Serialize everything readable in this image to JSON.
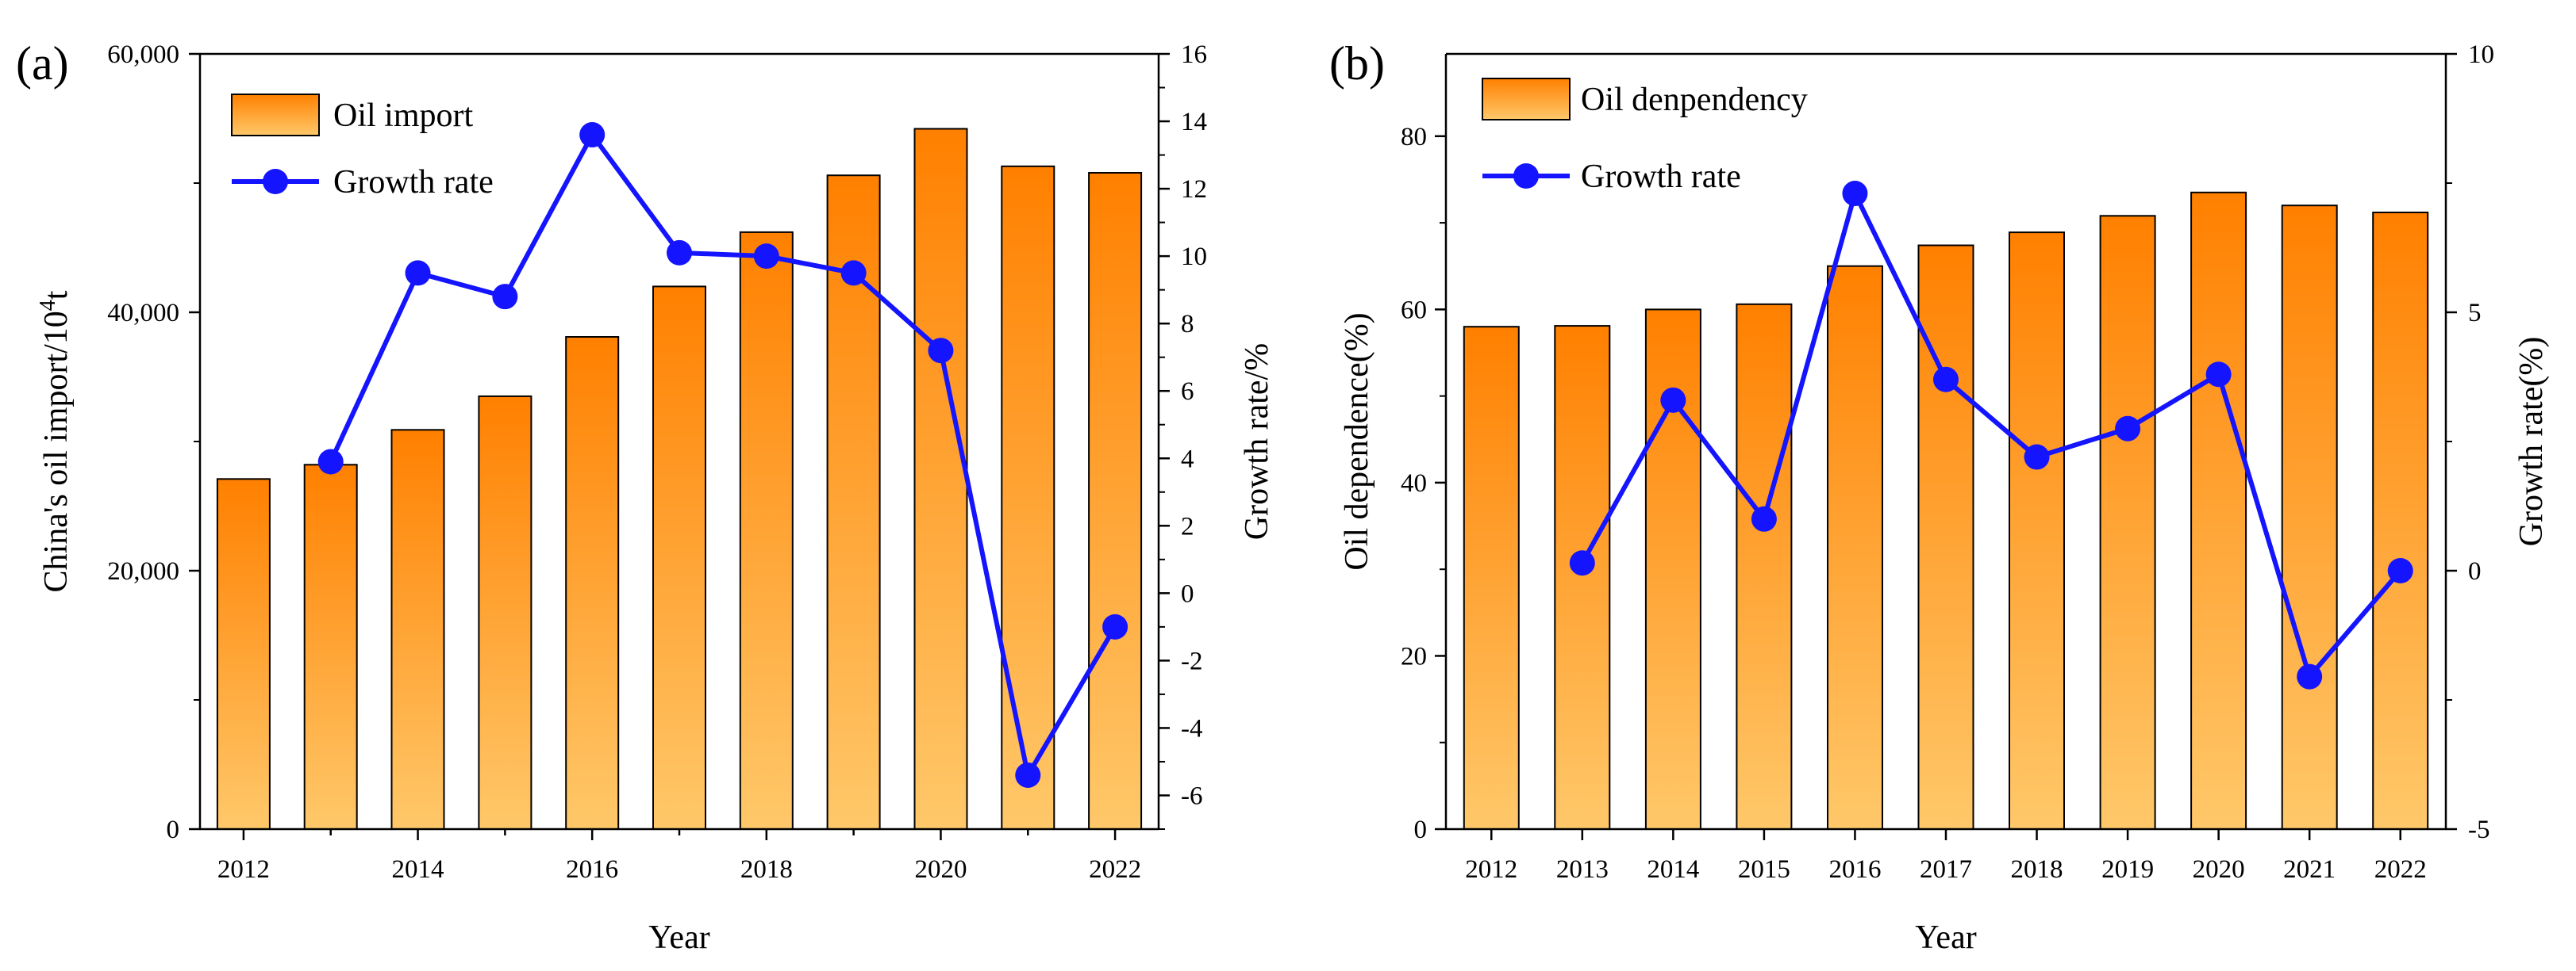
{
  "colors": {
    "bar_top": "#ff8000",
    "bar_bottom": "#ffc86a",
    "line": "#1414ff",
    "axis": "#000000"
  },
  "chart_data": [
    {
      "type": "bar",
      "panel_label": "(a)",
      "categories": [
        "2012",
        "2013",
        "2014",
        "2015",
        "2016",
        "2017",
        "2018",
        "2019",
        "2020",
        "2021",
        "2022"
      ],
      "series": [
        {
          "name": "Oil import",
          "type": "bar",
          "axis": "left",
          "values": [
            27100,
            28200,
            30900,
            33500,
            38100,
            42000,
            46200,
            50600,
            54200,
            51300,
            50800
          ]
        },
        {
          "name": "Growth rate",
          "type": "line",
          "axis": "right",
          "values": [
            null,
            3.9,
            9.5,
            8.8,
            13.6,
            10.1,
            10.0,
            9.5,
            7.2,
            -5.4,
            -1.0
          ]
        }
      ],
      "xlabel": "Year",
      "ylabel_left_prefix": "China's oil import/10",
      "ylabel_left_sup": "4",
      "ylabel_left_suffix": "t",
      "ylabel_right": "Growth rate/%",
      "ylim_left": [
        0,
        60000
      ],
      "ylim_right": [
        -7,
        16
      ],
      "yticks_left": [
        0,
        20000,
        40000,
        60000
      ],
      "yticks_left_labels": [
        "0",
        "20,000",
        "40,000",
        "60,000"
      ],
      "yticks_right": [
        -6,
        -4,
        -2,
        0,
        2,
        4,
        6,
        8,
        10,
        12,
        14,
        16
      ],
      "yticks_right_labels": [
        "-6",
        "-4",
        "-2",
        "0",
        "2",
        "4",
        "6",
        "8",
        "10",
        "12",
        "14",
        "16"
      ],
      "xtick_labels": [
        "2012",
        "",
        "2014",
        "",
        "2016",
        "",
        "2018",
        "",
        "2020",
        "",
        "2022"
      ],
      "legend": [
        "Oil import",
        "Growth rate"
      ],
      "legend_position": "top-left"
    },
    {
      "type": "bar",
      "panel_label": "(b)",
      "categories": [
        "2012",
        "2013",
        "2014",
        "2015",
        "2016",
        "2017",
        "2018",
        "2019",
        "2020",
        "2021",
        "2022"
      ],
      "series": [
        {
          "name": "Oil denpendency",
          "type": "bar",
          "axis": "left",
          "values": [
            58.0,
            58.1,
            60.0,
            60.6,
            65.0,
            67.4,
            68.9,
            70.8,
            73.5,
            72.0,
            71.2
          ]
        },
        {
          "name": "Growth rate",
          "type": "line",
          "axis": "right",
          "values": [
            null,
            0.15,
            3.3,
            1.0,
            7.3,
            3.7,
            2.2,
            2.75,
            3.8,
            -2.05,
            0.0
          ]
        }
      ],
      "xlabel": "Year",
      "ylabel_left": "Oil dependence(%)",
      "ylabel_right": "Growth rate(%)",
      "ylim_left": [
        0,
        89.5
      ],
      "ylim_right": [
        -5,
        10
      ],
      "yticks_left": [
        0,
        20,
        40,
        60,
        80
      ],
      "yticks_left_labels": [
        "0",
        "20",
        "40",
        "60",
        "80"
      ],
      "yticks_right": [
        -5,
        0,
        5,
        10
      ],
      "yticks_right_labels": [
        "-5",
        "0",
        "5",
        "10"
      ],
      "xtick_labels": [
        "2012",
        "2013",
        "2014",
        "2015",
        "2016",
        "2017",
        "2018",
        "2019",
        "2020",
        "2021",
        "2022"
      ],
      "legend": [
        "Oil denpendency",
        "Growth rate"
      ],
      "legend_position": "top-left"
    }
  ]
}
